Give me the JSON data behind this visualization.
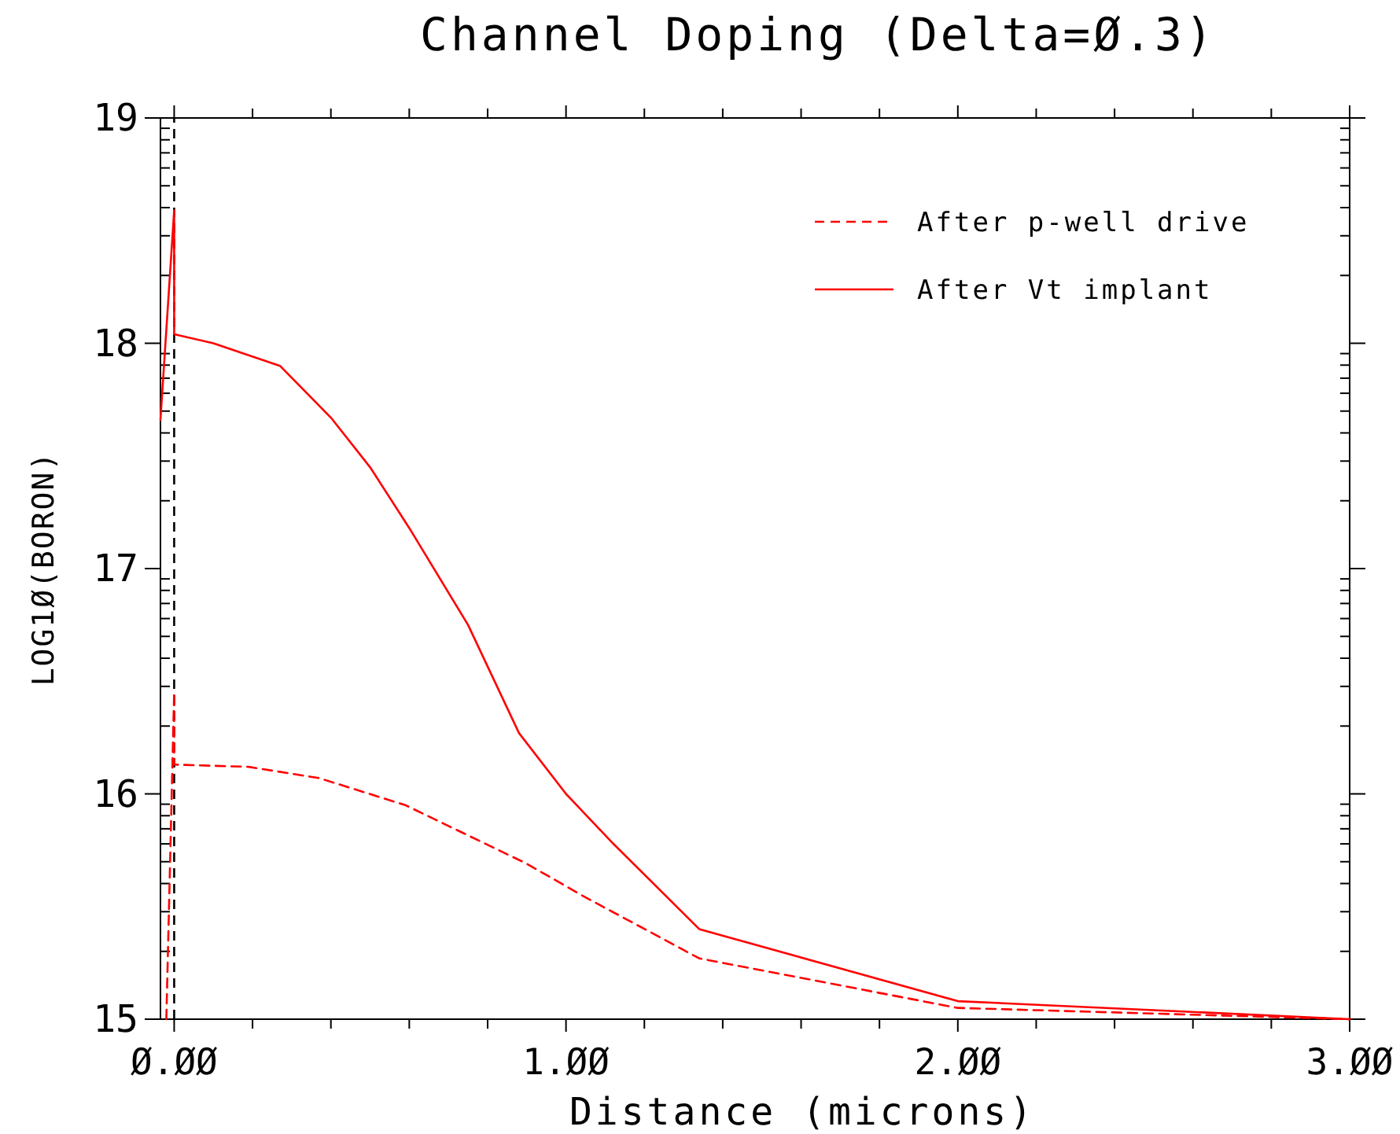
{
  "chart_data": {
    "type": "line",
    "title": "Channel Doping (Delta=Ø.3)",
    "xlabel": "Distance (microns)",
    "ylabel": "LOG1Ø(BORON)",
    "xlim": [
      -0.035,
      3.0
    ],
    "xticks": [
      {
        "value": 0,
        "label": "Ø.ØØ"
      },
      {
        "value": 0.2,
        "label": null
      },
      {
        "value": 0.4,
        "label": null
      },
      {
        "value": 0.6,
        "label": null
      },
      {
        "value": 0.8,
        "label": null
      },
      {
        "value": 1,
        "label": "1.ØØ"
      },
      {
        "value": 1.2,
        "label": null
      },
      {
        "value": 1.4,
        "label": null
      },
      {
        "value": 1.6,
        "label": null
      },
      {
        "value": 1.8,
        "label": null
      },
      {
        "value": 2,
        "label": "2.ØØ"
      },
      {
        "value": 2.2,
        "label": null
      },
      {
        "value": 2.4,
        "label": null
      },
      {
        "value": 2.6,
        "label": null
      },
      {
        "value": 2.8,
        "label": null
      },
      {
        "value": 3,
        "label": "3.ØØ"
      }
    ],
    "ylim": [
      15,
      19
    ],
    "yticks": [
      15,
      16,
      17,
      18,
      19
    ],
    "legend": "top right",
    "grid": false,
    "ref_lines": [
      {
        "axis": "x",
        "value": 0,
        "color": "#000000",
        "line_style": "dashed"
      }
    ],
    "series": [
      {
        "name": "After p-well drive",
        "color": "#ff0000",
        "line_style": "dashed",
        "x": [
          -0.02,
          0,
          0,
          0.19,
          0.37,
          0.59,
          0.9,
          1.04,
          1.34,
          2.0,
          3.0
        ],
        "values": [
          15.0,
          16.45,
          16.13,
          16.12,
          16.07,
          15.95,
          15.69,
          15.55,
          15.27,
          15.05,
          15.0
        ]
      },
      {
        "name": "After Vt implant",
        "color": "#ff0000",
        "line_style": "solid",
        "x": [
          -0.035,
          0,
          0,
          0.1,
          0.27,
          0.4,
          0.5,
          0.6,
          0.75,
          0.88,
          1.0,
          1.12,
          1.34,
          2.0,
          3.0
        ],
        "values": [
          17.66,
          18.59,
          18.04,
          18.0,
          17.9,
          17.67,
          17.45,
          17.18,
          16.75,
          16.27,
          16.0,
          15.78,
          15.4,
          15.08,
          15.0
        ]
      }
    ]
  }
}
